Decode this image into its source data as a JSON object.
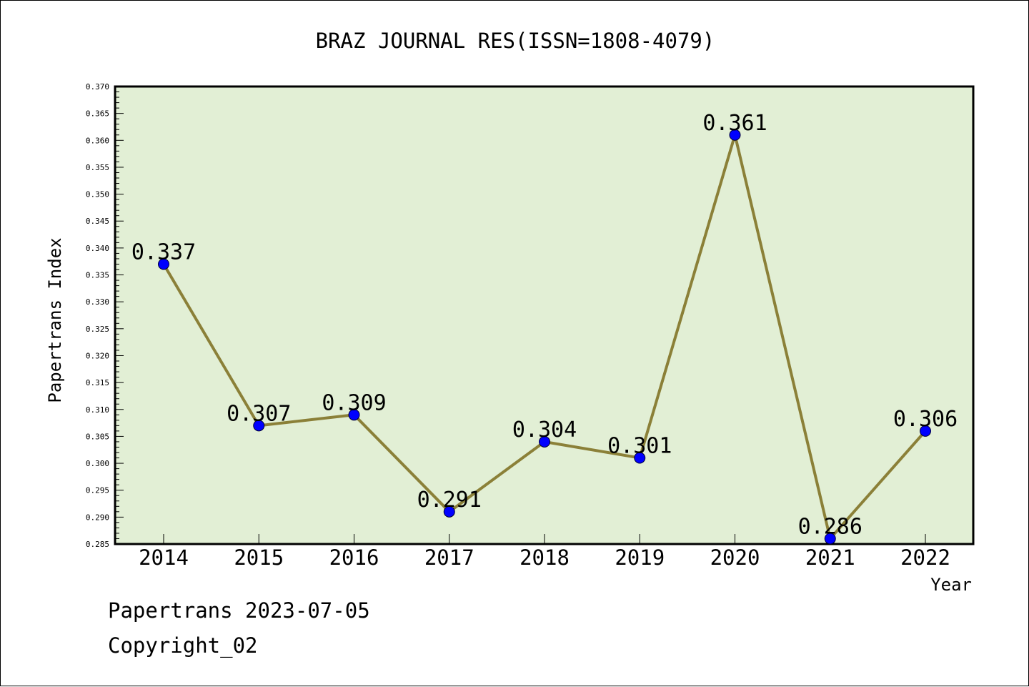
{
  "chart_data": {
    "type": "line",
    "title": "BRAZ JOURNAL RES(ISSN=1808-4079)",
    "xlabel": "Year",
    "ylabel": "Papertrans Index",
    "categories": [
      "2014",
      "2015",
      "2016",
      "2017",
      "2018",
      "2019",
      "2020",
      "2021",
      "2022"
    ],
    "values": [
      0.337,
      0.307,
      0.309,
      0.291,
      0.304,
      0.301,
      0.361,
      0.286,
      0.306
    ],
    "data_labels": [
      "0.337",
      "0.307",
      "0.309",
      "0.291",
      "0.304",
      "0.301",
      "0.361",
      "0.286",
      "0.306"
    ],
    "ylim": [
      0.285,
      0.37
    ],
    "yticks": [
      "0.285",
      "0.290",
      "0.295",
      "0.300",
      "0.305",
      "0.310",
      "0.315",
      "0.320",
      "0.325",
      "0.330",
      "0.335",
      "0.340",
      "0.345",
      "0.350",
      "0.355",
      "0.360",
      "0.365",
      "0.370"
    ],
    "grid": false,
    "colors": {
      "plot_background": "#e2efd5",
      "line": "#8b8038",
      "marker": "#0000ff"
    }
  },
  "footer": {
    "date_text": "Papertrans 2023-07-05",
    "copyright_text": "Copyright_02"
  }
}
